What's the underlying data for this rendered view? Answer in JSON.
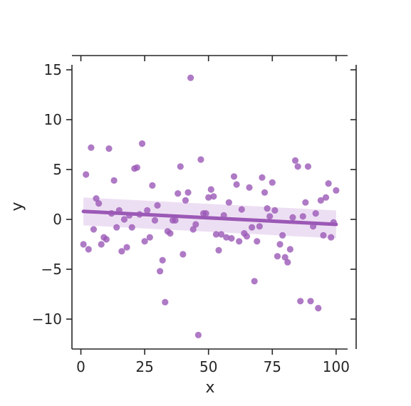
{
  "chart_data": {
    "type": "scatter",
    "title": "",
    "xlabel": "x",
    "ylabel": "y",
    "xlim": [
      -3.5,
      104.5
    ],
    "ylim": [
      -13,
      15.5
    ],
    "x_ticks": [
      0,
      25,
      50,
      75,
      100
    ],
    "x_tick_labels": [
      "0",
      "25",
      "50",
      "75",
      "100"
    ],
    "y_ticks": [
      -10,
      -5,
      0,
      5,
      10,
      15
    ],
    "y_tick_labels": [
      "−10",
      "−5",
      "0",
      "5",
      "10",
      "15"
    ],
    "grid": false,
    "legend": "none",
    "colors": {
      "points": "#9b59b6",
      "line": "#9b59b6",
      "ci_band": "#e8d7f0",
      "axis": "#262626"
    },
    "series": [
      {
        "x": [
          1,
          2,
          3,
          4,
          5,
          6,
          7,
          8,
          9,
          10,
          11,
          12,
          13,
          14,
          15,
          16,
          17,
          18,
          19,
          20,
          21,
          22,
          23,
          24,
          25,
          26,
          27,
          28,
          29,
          30,
          31,
          32,
          33,
          34,
          35,
          36,
          37,
          38,
          39,
          40,
          41,
          42,
          43,
          44,
          45,
          46,
          47,
          48,
          49,
          50,
          51,
          52,
          53,
          54,
          55,
          56,
          57,
          58,
          59,
          60,
          61,
          62,
          63,
          64,
          65,
          66,
          67,
          68,
          69,
          70,
          71,
          72,
          73,
          74,
          75,
          76,
          77,
          78,
          79,
          80,
          81,
          82,
          83,
          84,
          85,
          86,
          87,
          88,
          89,
          90,
          91,
          92,
          93,
          94,
          95,
          96,
          97,
          98,
          99,
          100
        ],
        "y": [
          -2.5,
          4.5,
          -3.0,
          7.2,
          -1.0,
          2.1,
          1.6,
          -2.5,
          -1.8,
          -2.0,
          7.1,
          0.6,
          3.9,
          -0.8,
          0.9,
          -3.2,
          0.0,
          -2.8,
          0.4,
          -0.8,
          5.1,
          5.2,
          0.5,
          7.6,
          -2.2,
          0.9,
          -1.8,
          3.4,
          -0.1,
          1.4,
          -5.2,
          -4.1,
          -8.3,
          -1.2,
          -1.4,
          -0.1,
          -0.1,
          2.6,
          5.3,
          -3.5,
          1.9,
          2.7,
          14.2,
          -1.0,
          -0.5,
          -11.6,
          6.0,
          0.6,
          0.6,
          2.2,
          3.0,
          2.3,
          -1.5,
          -3.1,
          -1.5,
          0.4,
          -1.8,
          1.7,
          -1.9,
          4.3,
          3.5,
          -2.2,
          1.0,
          -1.4,
          -1.7,
          3.2,
          -0.8,
          -6.2,
          -2.2,
          -0.7,
          4.2,
          2.7,
          1.1,
          0.3,
          3.7,
          0.9,
          -3.7,
          -2.5,
          -1.6,
          -3.8,
          -4.3,
          -3.0,
          0.2,
          5.9,
          5.3,
          -8.2,
          0.3,
          1.7,
          5.3,
          -8.2,
          -0.7,
          0.6,
          -8.9,
          1.9,
          -1.6,
          2.2,
          3.6,
          -1.8,
          -0.3,
          2.9
        ]
      }
    ],
    "regression": {
      "x_range": [
        1,
        100
      ],
      "y_start": 0.8,
      "y_end": -0.5
    },
    "ci_band": {
      "upper_start": 2.2,
      "upper_end": 0.9,
      "lower_start": -0.6,
      "lower_end": -1.9
    }
  }
}
